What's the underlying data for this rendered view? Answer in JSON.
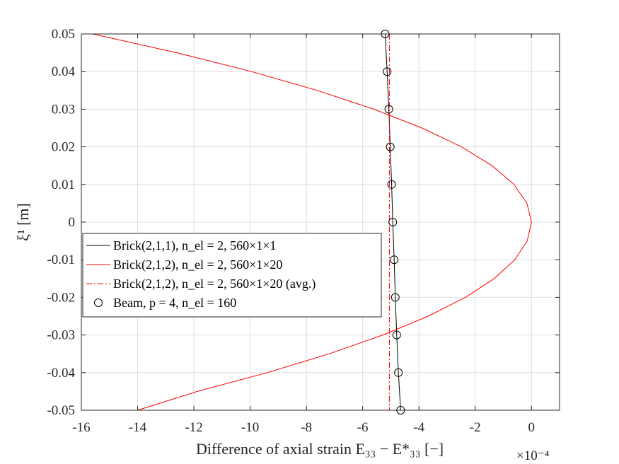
{
  "chart_data": {
    "type": "line",
    "xlabel": "Difference of axial strain E₃₃ − E*₃₃ [−]",
    "ylabel": "ξ¹ [m]",
    "x_multiplier": "×10⁻⁴",
    "xlim": [
      -16,
      1
    ],
    "ylim": [
      -0.05,
      0.05
    ],
    "x_ticks": [
      -16,
      -14,
      -12,
      -10,
      -8,
      -6,
      -4,
      -2,
      0
    ],
    "x_tick_labels": [
      "-16",
      "-14",
      "-12",
      "-10",
      "-8",
      "-6",
      "-4",
      "-2",
      "0"
    ],
    "y_ticks": [
      0.05,
      0.04,
      0.03,
      0.02,
      0.01,
      0,
      -0.01,
      -0.02,
      -0.03,
      -0.04,
      -0.05
    ],
    "y_tick_labels": [
      "0.05",
      "0.04",
      "0.03",
      "0.02",
      "0.01",
      "0",
      "-0.01",
      "-0.02",
      "-0.03",
      "-0.04",
      "-0.05"
    ],
    "grid": true,
    "legend_position": "center-left",
    "series": [
      {
        "name": "Brick(2,1,1), n_el = 2,560×1×1",
        "legend_label": "Brick(2,1,1), n_el = 2, 560×1×1",
        "color": "#000000",
        "style": "solid",
        "points": [
          [
            -5.2,
            0.05
          ],
          [
            -5.13,
            0.04
          ],
          [
            -5.07,
            0.03
          ],
          [
            -5.02,
            0.02
          ],
          [
            -4.97,
            0.01
          ],
          [
            -4.93,
            0
          ],
          [
            -4.88,
            -0.01
          ],
          [
            -4.84,
            -0.02
          ],
          [
            -4.79,
            -0.03
          ],
          [
            -4.73,
            -0.04
          ],
          [
            -4.65,
            -0.05
          ]
        ]
      },
      {
        "name": "Brick(2,1,2), n_el = 2,560×1×20",
        "legend_label": "Brick(2,1,2), n_el = 2, 560×1×20",
        "color": "#ff0000",
        "style": "solid",
        "points": [
          [
            -15.6,
            0.05
          ],
          [
            -12.6,
            0.045
          ],
          [
            -9.95,
            0.04
          ],
          [
            -7.62,
            0.035
          ],
          [
            -5.6,
            0.03
          ],
          [
            -3.89,
            0.025
          ],
          [
            -2.49,
            0.02
          ],
          [
            -1.4,
            0.015
          ],
          [
            -0.62,
            0.01
          ],
          [
            -0.16,
            0.005
          ],
          [
            0,
            0
          ],
          [
            -0.15,
            -0.005
          ],
          [
            -0.59,
            -0.01
          ],
          [
            -1.32,
            -0.015
          ],
          [
            -2.35,
            -0.02
          ],
          [
            -3.67,
            -0.025
          ],
          [
            -5.28,
            -0.03
          ],
          [
            -7.19,
            -0.035
          ],
          [
            -9.39,
            -0.04
          ],
          [
            -11.88,
            -0.045
          ],
          [
            -14.0,
            -0.05
          ]
        ]
      },
      {
        "name": "Brick(2,1,2), n_el = 2,560×1×20 (avg.)",
        "legend_label": "Brick(2,1,2), n_el = 2, 560×1×20 (avg.)",
        "color": "#ff0000",
        "style": "dashdot",
        "points": [
          [
            -5.05,
            0.05
          ],
          [
            -5.05,
            -0.05
          ]
        ]
      },
      {
        "name": "Beam, p = 4, n_el = 160",
        "legend_label": "Beam, p = 4, n_el = 160",
        "color": "#000000",
        "style": "marker-circle",
        "points": [
          [
            -5.2,
            0.05
          ],
          [
            -5.13,
            0.04
          ],
          [
            -5.07,
            0.03
          ],
          [
            -5.02,
            0.02
          ],
          [
            -4.97,
            0.01
          ],
          [
            -4.93,
            0
          ],
          [
            -4.88,
            -0.01
          ],
          [
            -4.84,
            -0.02
          ],
          [
            -4.79,
            -0.03
          ],
          [
            -4.73,
            -0.04
          ],
          [
            -4.65,
            -0.05
          ]
        ]
      }
    ]
  }
}
